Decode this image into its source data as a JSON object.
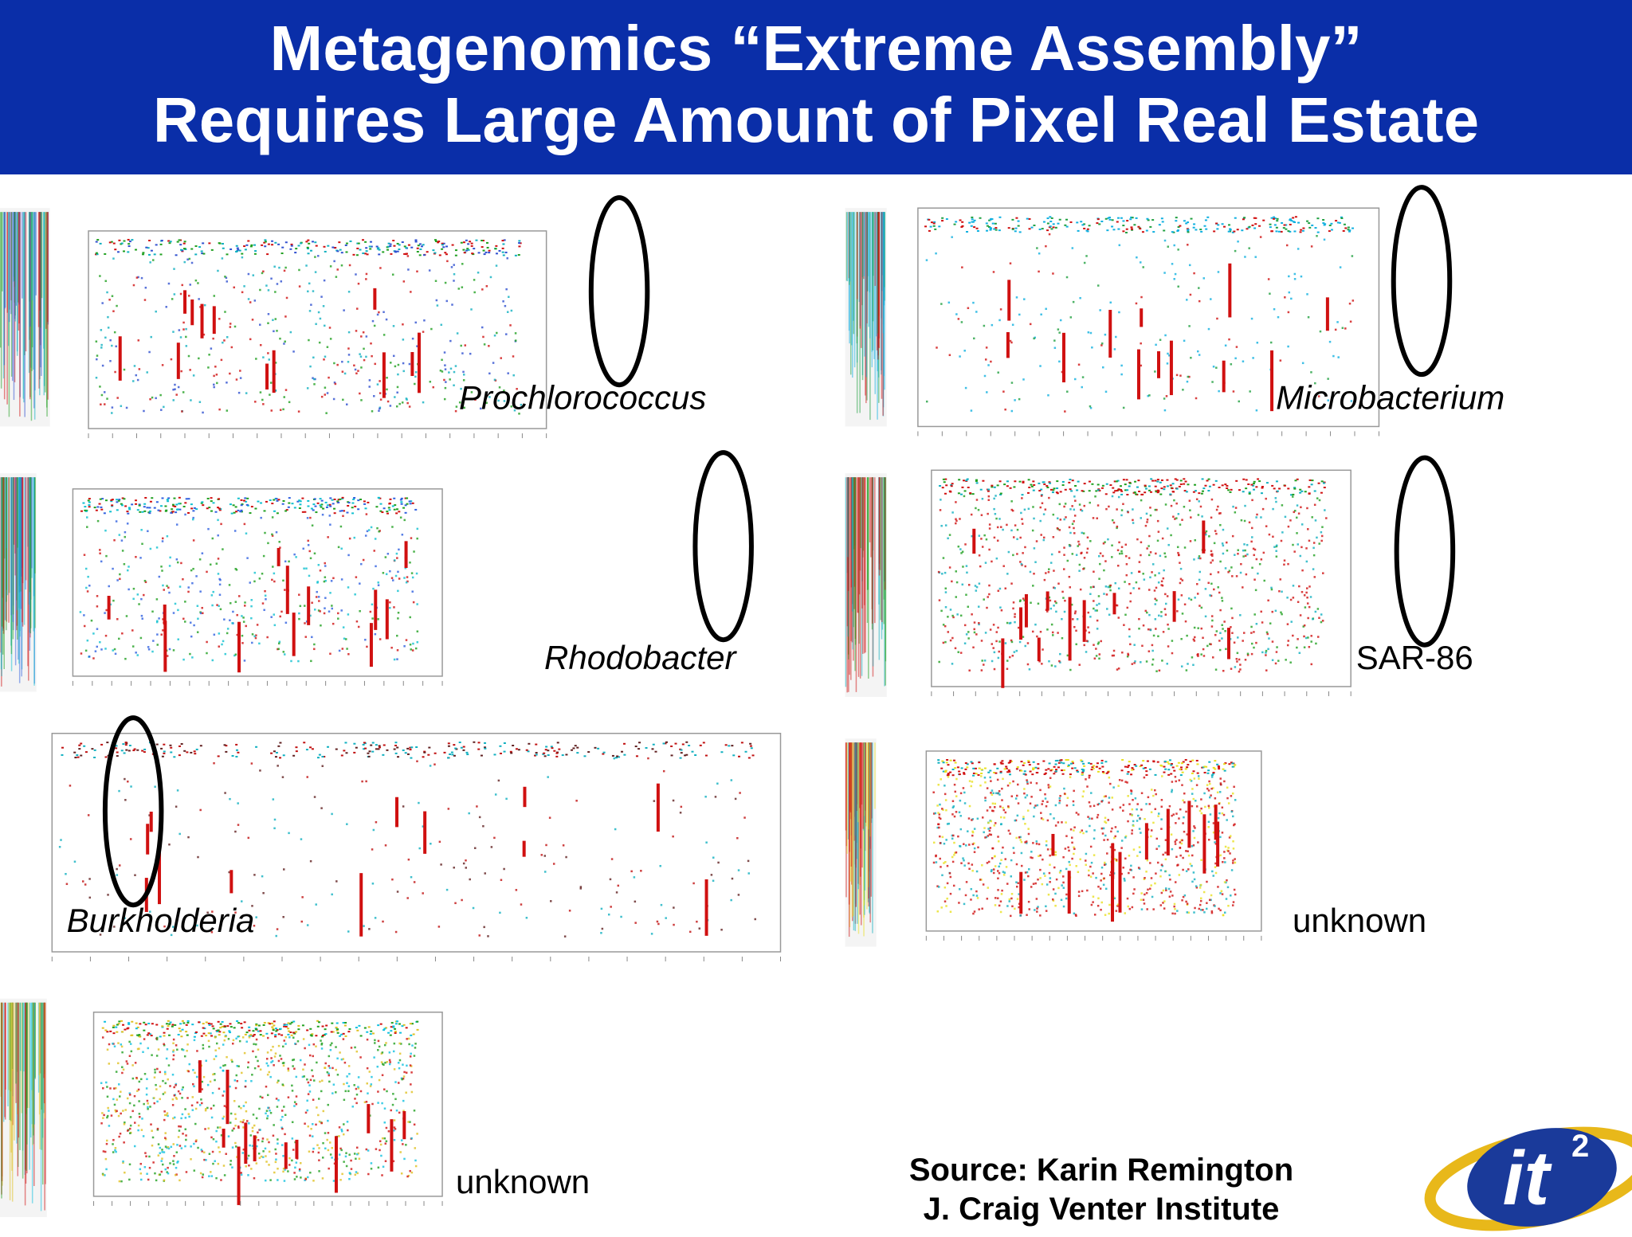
{
  "header": {
    "title_line1": "Metagenomics “Extreme Assembly”",
    "title_line2": "Requires Large Amount of Pixel Real Estate"
  },
  "panels": [
    {
      "label": "Prochlorococcus"
    },
    {
      "label": "Microbacterium"
    },
    {
      "label": "Rhodobacter"
    },
    {
      "label": "SAR-86"
    },
    {
      "label": "Burkholderia"
    },
    {
      "label": "unknown"
    },
    {
      "label": "unknown"
    }
  ],
  "source": {
    "line1": "Source: Karin Remington",
    "line2": "J. Craig Venter Institute"
  },
  "logo": {
    "text": "it",
    "superscript": "2"
  }
}
